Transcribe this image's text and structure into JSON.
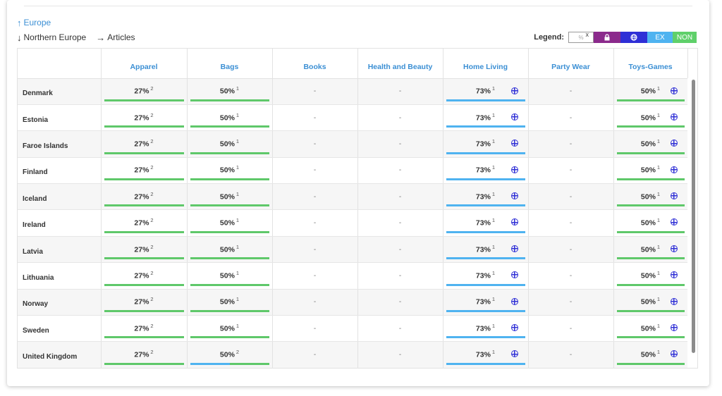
{
  "breadcrumb": {
    "up": "Europe",
    "current": "Northern Europe",
    "next": "Articles"
  },
  "legend": {
    "label": "Legend:",
    "pct_symbol": "%",
    "pct_x": "x",
    "ex": "EX",
    "non": "NON",
    "colors": {
      "lock": "#8b2a8c",
      "globe": "#2f2fd6",
      "ex": "#4fb3f0",
      "non": "#5fd06a"
    }
  },
  "table": {
    "columns": [
      "Apparel",
      "Bags",
      "Books",
      "Health and Beauty",
      "Home Living",
      "Party Wear",
      "Toys-Games"
    ],
    "rows": [
      {
        "country": "Denmark",
        "cells": [
          {
            "v": "27%",
            "s": "2",
            "bar": "green"
          },
          {
            "v": "50%",
            "s": "1",
            "bar": "green"
          },
          {
            "v": "-"
          },
          {
            "v": "-"
          },
          {
            "v": "73%",
            "s": "1",
            "bar": "blue",
            "globe": true
          },
          {
            "v": "-"
          },
          {
            "v": "50%",
            "s": "1",
            "bar": "green",
            "globe": true
          }
        ]
      },
      {
        "country": "Estonia",
        "cells": [
          {
            "v": "27%",
            "s": "2",
            "bar": "green"
          },
          {
            "v": "50%",
            "s": "1",
            "bar": "green"
          },
          {
            "v": "-"
          },
          {
            "v": "-"
          },
          {
            "v": "73%",
            "s": "1",
            "bar": "blue",
            "globe": true
          },
          {
            "v": "-"
          },
          {
            "v": "50%",
            "s": "1",
            "bar": "green",
            "globe": true
          }
        ]
      },
      {
        "country": "Faroe Islands",
        "cells": [
          {
            "v": "27%",
            "s": "2",
            "bar": "green"
          },
          {
            "v": "50%",
            "s": "1",
            "bar": "green"
          },
          {
            "v": "-"
          },
          {
            "v": "-"
          },
          {
            "v": "73%",
            "s": "1",
            "bar": "blue",
            "globe": true
          },
          {
            "v": "-"
          },
          {
            "v": "50%",
            "s": "1",
            "bar": "green",
            "globe": true
          }
        ]
      },
      {
        "country": "Finland",
        "cells": [
          {
            "v": "27%",
            "s": "2",
            "bar": "green"
          },
          {
            "v": "50%",
            "s": "1",
            "bar": "green"
          },
          {
            "v": "-"
          },
          {
            "v": "-"
          },
          {
            "v": "73%",
            "s": "1",
            "bar": "blue",
            "globe": true
          },
          {
            "v": "-"
          },
          {
            "v": "50%",
            "s": "1",
            "bar": "green",
            "globe": true
          }
        ]
      },
      {
        "country": "Iceland",
        "cells": [
          {
            "v": "27%",
            "s": "2",
            "bar": "green"
          },
          {
            "v": "50%",
            "s": "1",
            "bar": "green"
          },
          {
            "v": "-"
          },
          {
            "v": "-"
          },
          {
            "v": "73%",
            "s": "1",
            "bar": "blue",
            "globe": true
          },
          {
            "v": "-"
          },
          {
            "v": "50%",
            "s": "1",
            "bar": "green",
            "globe": true
          }
        ]
      },
      {
        "country": "Ireland",
        "cells": [
          {
            "v": "27%",
            "s": "2",
            "bar": "green"
          },
          {
            "v": "50%",
            "s": "1",
            "bar": "green"
          },
          {
            "v": "-"
          },
          {
            "v": "-"
          },
          {
            "v": "73%",
            "s": "1",
            "bar": "blue",
            "globe": true
          },
          {
            "v": "-"
          },
          {
            "v": "50%",
            "s": "1",
            "bar": "green",
            "globe": true
          }
        ]
      },
      {
        "country": "Latvia",
        "cells": [
          {
            "v": "27%",
            "s": "2",
            "bar": "green"
          },
          {
            "v": "50%",
            "s": "1",
            "bar": "green"
          },
          {
            "v": "-"
          },
          {
            "v": "-"
          },
          {
            "v": "73%",
            "s": "1",
            "bar": "blue",
            "globe": true
          },
          {
            "v": "-"
          },
          {
            "v": "50%",
            "s": "1",
            "bar": "green",
            "globe": true
          }
        ]
      },
      {
        "country": "Lithuania",
        "cells": [
          {
            "v": "27%",
            "s": "2",
            "bar": "green"
          },
          {
            "v": "50%",
            "s": "1",
            "bar": "green"
          },
          {
            "v": "-"
          },
          {
            "v": "-"
          },
          {
            "v": "73%",
            "s": "1",
            "bar": "blue",
            "globe": true
          },
          {
            "v": "-"
          },
          {
            "v": "50%",
            "s": "1",
            "bar": "green",
            "globe": true
          }
        ]
      },
      {
        "country": "Norway",
        "cells": [
          {
            "v": "27%",
            "s": "2",
            "bar": "green"
          },
          {
            "v": "50%",
            "s": "1",
            "bar": "green"
          },
          {
            "v": "-"
          },
          {
            "v": "-"
          },
          {
            "v": "73%",
            "s": "1",
            "bar": "blue",
            "globe": true
          },
          {
            "v": "-"
          },
          {
            "v": "50%",
            "s": "1",
            "bar": "green",
            "globe": true
          }
        ]
      },
      {
        "country": "Sweden",
        "cells": [
          {
            "v": "27%",
            "s": "2",
            "bar": "green"
          },
          {
            "v": "50%",
            "s": "1",
            "bar": "green"
          },
          {
            "v": "-"
          },
          {
            "v": "-"
          },
          {
            "v": "73%",
            "s": "1",
            "bar": "blue",
            "globe": true
          },
          {
            "v": "-"
          },
          {
            "v": "50%",
            "s": "1",
            "bar": "green",
            "globe": true
          }
        ]
      },
      {
        "country": "United Kingdom",
        "cells": [
          {
            "v": "27%",
            "s": "2",
            "bar": "green"
          },
          {
            "v": "50%",
            "s": "2",
            "bar": "blue-green"
          },
          {
            "v": "-"
          },
          {
            "v": "-"
          },
          {
            "v": "73%",
            "s": "1",
            "bar": "blue",
            "globe": true
          },
          {
            "v": "-"
          },
          {
            "v": "50%",
            "s": "1",
            "bar": "green",
            "globe": true
          }
        ]
      }
    ]
  }
}
